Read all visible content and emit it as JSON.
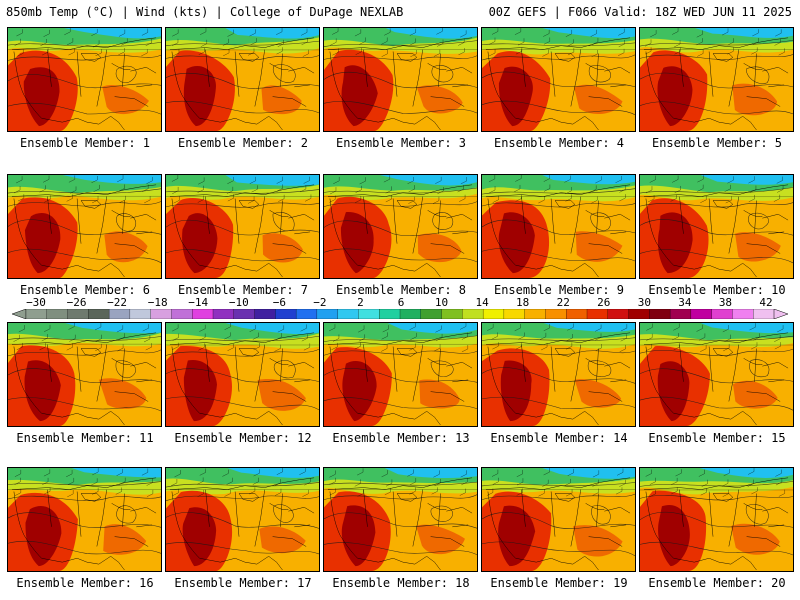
{
  "header": {
    "left": "850mb Temp (°C) | Wind (kts) | College of DuPage NEXLAB",
    "right": "00Z GEFS | F066 Valid: 18Z WED JUN 11 2025"
  },
  "members": [
    {
      "label": "Ensemble Member: 1"
    },
    {
      "label": "Ensemble Member: 2"
    },
    {
      "label": "Ensemble Member: 3"
    },
    {
      "label": "Ensemble Member: 4"
    },
    {
      "label": "Ensemble Member: 5"
    },
    {
      "label": "Ensemble Member: 6"
    },
    {
      "label": "Ensemble Member: 7"
    },
    {
      "label": "Ensemble Member: 8"
    },
    {
      "label": "Ensemble Member: 9"
    },
    {
      "label": "Ensemble Member: 10"
    },
    {
      "label": "Ensemble Member: 11"
    },
    {
      "label": "Ensemble Member: 12"
    },
    {
      "label": "Ensemble Member: 13"
    },
    {
      "label": "Ensemble Member: 14"
    },
    {
      "label": "Ensemble Member: 15"
    },
    {
      "label": "Ensemble Member: 16"
    },
    {
      "label": "Ensemble Member: 17"
    },
    {
      "label": "Ensemble Member: 18"
    },
    {
      "label": "Ensemble Member: 19"
    },
    {
      "label": "Ensemble Member: 20"
    }
  ],
  "colorbar": {
    "labels": [
      "−30",
      "−26",
      "−22",
      "−18",
      "−14",
      "−10",
      "−6",
      "−2",
      "2",
      "6",
      "10",
      "14",
      "18",
      "22",
      "26",
      "30",
      "34",
      "38",
      "42"
    ],
    "colors": [
      "#8f9e8f",
      "#7f8f7f",
      "#6e7a6e",
      "#5a665a",
      "#9aa4c0",
      "#c0c8dc",
      "#d8a0e0",
      "#c070d8",
      "#e040e0",
      "#9030c0",
      "#6a30b0",
      "#4020a0",
      "#2040d0",
      "#2070f0",
      "#20a0f0",
      "#30c8f0",
      "#40e0e0",
      "#20d0a0",
      "#20b060",
      "#40a030",
      "#80c020",
      "#c0e020",
      "#f0f000",
      "#f8d800",
      "#f8b000",
      "#f89000",
      "#f06000",
      "#e83000",
      "#d01010",
      "#a00000",
      "#800010",
      "#a00050",
      "#c000a0",
      "#e040d0",
      "#f080f0",
      "#f0c0f0"
    ]
  },
  "palette": {
    "cold": "#20c0f0",
    "cool": "#40c060",
    "mild": "#c8e020",
    "warm": "#f8b000",
    "hot": "#e83000",
    "veryhot": "#a00000"
  }
}
